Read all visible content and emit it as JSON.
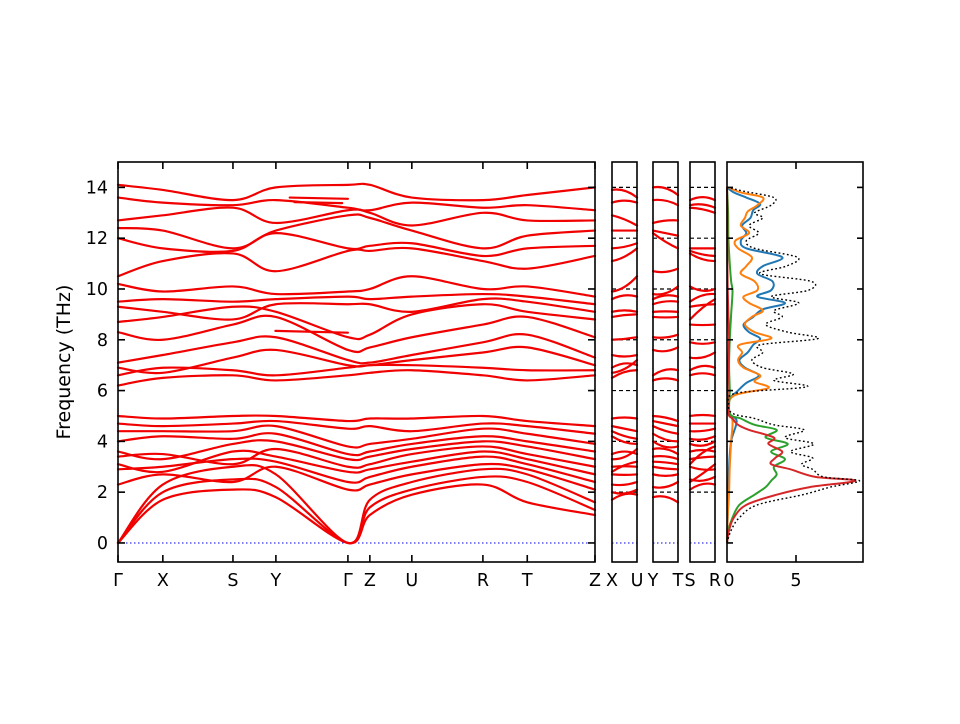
{
  "chart_data": {
    "type": "line",
    "title": "",
    "description": "Phonon band structure along orthorhombic high-symmetry path with three extra k-path segment panels and projected density of states panel",
    "ylabel": "Frequency (THz)",
    "yticks": [
      0,
      2,
      4,
      6,
      8,
      10,
      12,
      14
    ],
    "ylim": [
      -0.75,
      15.0
    ],
    "grid": "dashed horizontal lines in small segment panels only",
    "band_color": "#f10000",
    "zero_line_color": "#0000ff",
    "axis_color": "#000000",
    "main_panel": {
      "kpoint_labels": [
        "Γ",
        "X",
        "S",
        "Y",
        "Γ",
        "Z",
        "U",
        "R",
        "T",
        "Z"
      ],
      "kpoint_fractions": [
        0,
        0.094,
        0.241,
        0.331,
        0.482,
        0.528,
        0.616,
        0.765,
        0.858,
        1.0
      ],
      "bands": [
        [
          0.0,
          1.7,
          2.1,
          1.8,
          0.0,
          1.1,
          1.9,
          2.3,
          1.6,
          1.1
        ],
        [
          0.0,
          2.0,
          2.5,
          2.2,
          0.0,
          1.4,
          2.1,
          2.6,
          2.4,
          1.3
        ],
        [
          0.0,
          2.3,
          3.0,
          2.7,
          0.0,
          1.7,
          2.4,
          2.9,
          2.7,
          1.6
        ],
        [
          2.3,
          2.7,
          2.4,
          3.0,
          2.1,
          2.3,
          2.7,
          3.1,
          2.9,
          2.1
        ],
        [
          2.9,
          3.0,
          3.3,
          3.2,
          2.4,
          2.6,
          3.0,
          3.4,
          3.1,
          2.4
        ],
        [
          3.1,
          2.8,
          3.6,
          3.4,
          2.8,
          2.9,
          3.2,
          3.6,
          3.3,
          2.7
        ],
        [
          3.4,
          3.5,
          3.1,
          3.7,
          3.0,
          3.1,
          3.5,
          3.8,
          3.5,
          3.0
        ],
        [
          3.6,
          3.3,
          3.9,
          4.0,
          3.3,
          3.4,
          3.7,
          4.0,
          3.8,
          3.3
        ],
        [
          4.0,
          4.2,
          4.1,
          4.3,
          3.5,
          3.6,
          3.9,
          4.2,
          4.0,
          3.6
        ],
        [
          4.4,
          4.4,
          4.4,
          4.6,
          3.8,
          3.9,
          4.1,
          4.5,
          4.3,
          3.9
        ],
        [
          4.7,
          4.6,
          4.7,
          4.8,
          4.5,
          4.6,
          4.4,
          4.7,
          4.6,
          4.3
        ],
        [
          5.0,
          4.9,
          5.0,
          5.0,
          4.8,
          4.9,
          4.9,
          5.0,
          4.8,
          4.6
        ],
        [
          6.2,
          6.5,
          6.6,
          6.4,
          6.6,
          6.7,
          6.8,
          6.6,
          6.4,
          6.6
        ],
        [
          6.6,
          6.9,
          6.8,
          6.6,
          6.9,
          7.0,
          7.0,
          6.9,
          6.8,
          6.8
        ],
        [
          6.9,
          6.7,
          7.3,
          7.6,
          7.0,
          7.0,
          7.2,
          7.5,
          7.7,
          7.0
        ],
        [
          7.1,
          7.4,
          7.9,
          8.1,
          7.2,
          7.1,
          7.4,
          7.9,
          8.2,
          7.3
        ],
        [
          8.3,
          8.0,
          8.6,
          8.9,
          7.6,
          7.7,
          8.1,
          8.6,
          8.9,
          8.1
        ],
        [
          8.7,
          8.9,
          9.3,
          9.1,
          8.1,
          8.2,
          9.0,
          9.4,
          9.1,
          8.8
        ],
        [
          9.3,
          9.1,
          8.8,
          9.4,
          9.4,
          9.4,
          9.1,
          9.6,
          9.5,
          9.1
        ],
        [
          9.5,
          9.6,
          9.5,
          9.6,
          9.7,
          9.6,
          9.7,
          9.8,
          9.7,
          9.4
        ],
        [
          10.2,
          9.9,
          10.1,
          9.8,
          9.9,
          10.0,
          10.5,
          10.0,
          10.1,
          9.7
        ],
        [
          10.5,
          11.1,
          11.4,
          10.7,
          11.5,
          11.5,
          11.6,
          11.1,
          10.8,
          11.3
        ],
        [
          12.0,
          11.6,
          11.5,
          12.2,
          11.6,
          11.7,
          11.8,
          11.3,
          11.6,
          11.7
        ],
        [
          12.4,
          12.3,
          11.6,
          12.3,
          12.9,
          12.8,
          12.3,
          11.6,
          12.1,
          12.3
        ],
        [
          12.7,
          12.9,
          13.2,
          12.6,
          13.1,
          13.0,
          12.5,
          13.0,
          12.7,
          12.7
        ],
        [
          13.6,
          13.4,
          13.3,
          13.5,
          13.2,
          13.1,
          13.4,
          13.2,
          13.3,
          13.1
        ],
        [
          14.1,
          13.9,
          13.5,
          14.0,
          14.1,
          14.1,
          13.6,
          13.5,
          13.7,
          14.0
        ]
      ],
      "extra_segments": [
        [
          [
            0.36,
            13.6
          ],
          [
            0.482,
            13.55
          ]
        ],
        [
          [
            0.37,
            13.42
          ],
          [
            0.47,
            13.38
          ]
        ],
        [
          [
            0.33,
            8.35
          ],
          [
            0.482,
            8.28
          ]
        ]
      ]
    },
    "small_panels": [
      {
        "left_label": "X",
        "right_label": "U",
        "endpoint_indices": [
          1,
          6
        ]
      },
      {
        "left_label": "Y",
        "right_label": "T",
        "endpoint_indices": [
          3,
          8
        ]
      },
      {
        "left_label": "S",
        "right_label": "R",
        "endpoint_indices": [
          2,
          7
        ]
      }
    ],
    "dos_panel": {
      "xticks": [
        "0",
        "5"
      ],
      "xtick_values": [
        0,
        5
      ],
      "xlim": [
        0,
        9.85
      ],
      "series": [
        {
          "name": "dos-partial-blue",
          "color": "#1f77b4",
          "style": "solid",
          "points": [
            [
              0,
              0
            ],
            [
              1,
              0.05
            ],
            [
              2,
              0.1
            ],
            [
              3,
              0.15
            ],
            [
              4,
              0.3
            ],
            [
              4.8,
              0.7
            ],
            [
              5.1,
              0.15
            ],
            [
              5.6,
              0.1
            ],
            [
              6.0,
              0.8
            ],
            [
              6.3,
              1.4
            ],
            [
              6.6,
              2.3
            ],
            [
              6.9,
              1.3
            ],
            [
              7.2,
              0.9
            ],
            [
              7.5,
              1.5
            ],
            [
              7.8,
              1.9
            ],
            [
              8.05,
              2.4
            ],
            [
              8.3,
              1.6
            ],
            [
              8.6,
              1.2
            ],
            [
              8.9,
              1.9
            ],
            [
              9.2,
              2.6
            ],
            [
              9.45,
              4.2
            ],
            [
              9.7,
              2.2
            ],
            [
              9.95,
              3.2
            ],
            [
              10.3,
              3.3
            ],
            [
              10.6,
              2.2
            ],
            [
              10.9,
              2.6
            ],
            [
              11.25,
              4.0
            ],
            [
              11.6,
              1.4
            ],
            [
              11.9,
              1.0
            ],
            [
              12.2,
              1.4
            ],
            [
              12.5,
              1.1
            ],
            [
              12.8,
              1.7
            ],
            [
              13.1,
              1.9
            ],
            [
              13.35,
              2.4
            ],
            [
              13.6,
              1.4
            ],
            [
              13.8,
              0.5
            ],
            [
              14.0,
              0
            ]
          ]
        },
        {
          "name": "dos-partial-orange",
          "color": "#ff7f0e",
          "style": "solid",
          "points": [
            [
              0,
              0
            ],
            [
              1,
              0.05
            ],
            [
              2,
              0.15
            ],
            [
              3,
              0.2
            ],
            [
              4,
              0.3
            ],
            [
              4.8,
              0.4
            ],
            [
              5.2,
              0.1
            ],
            [
              5.8,
              0.5
            ],
            [
              6.1,
              3.0
            ],
            [
              6.35,
              2.0
            ],
            [
              6.6,
              2.4
            ],
            [
              6.9,
              1.2
            ],
            [
              7.2,
              0.8
            ],
            [
              7.5,
              1.1
            ],
            [
              7.8,
              0.9
            ],
            [
              8.05,
              3.2
            ],
            [
              8.3,
              2.0
            ],
            [
              8.6,
              1.3
            ],
            [
              8.9,
              1.8
            ],
            [
              9.15,
              2.6
            ],
            [
              9.45,
              1.6
            ],
            [
              9.7,
              1.2
            ],
            [
              9.95,
              2.2
            ],
            [
              10.3,
              2.0
            ],
            [
              10.6,
              1.0
            ],
            [
              10.9,
              1.4
            ],
            [
              11.25,
              1.8
            ],
            [
              11.6,
              0.8
            ],
            [
              11.9,
              0.6
            ],
            [
              12.2,
              1.6
            ],
            [
              12.5,
              1.0
            ],
            [
              12.8,
              1.3
            ],
            [
              13.05,
              1.5
            ],
            [
              13.3,
              2.2
            ],
            [
              13.6,
              2.6
            ],
            [
              13.8,
              1.0
            ],
            [
              14.0,
              0.1
            ]
          ]
        },
        {
          "name": "dos-partial-green",
          "color": "#2ca02c",
          "style": "solid",
          "points": [
            [
              0,
              0
            ],
            [
              0.5,
              0.1
            ],
            [
              1,
              0.4
            ],
            [
              1.5,
              0.9
            ],
            [
              1.9,
              2.0
            ],
            [
              2.2,
              2.8
            ],
            [
              2.45,
              3.2
            ],
            [
              2.7,
              3.6
            ],
            [
              3.0,
              3.4
            ],
            [
              3.3,
              4.2
            ],
            [
              3.6,
              3.2
            ],
            [
              3.9,
              4.4
            ],
            [
              4.15,
              2.8
            ],
            [
              4.45,
              3.6
            ],
            [
              4.65,
              2.0
            ],
            [
              4.9,
              1.0
            ],
            [
              5.1,
              0.2
            ],
            [
              6,
              0.2
            ],
            [
              7,
              0.15
            ],
            [
              8,
              0.2
            ],
            [
              9,
              0.3
            ],
            [
              9.9,
              0.4
            ],
            [
              10.3,
              0.3
            ],
            [
              11,
              0.2
            ],
            [
              12,
              0.1
            ],
            [
              13,
              0.08
            ],
            [
              14,
              0
            ]
          ]
        },
        {
          "name": "dos-partial-red",
          "color": "#d62728",
          "style": "solid",
          "points": [
            [
              0,
              0
            ],
            [
              0.5,
              0.15
            ],
            [
              1,
              0.5
            ],
            [
              1.5,
              1.4
            ],
            [
              1.9,
              3.6
            ],
            [
              2.2,
              6.0
            ],
            [
              2.45,
              9.3
            ],
            [
              2.6,
              6.4
            ],
            [
              2.9,
              4.6
            ],
            [
              3.1,
              3.2
            ],
            [
              3.35,
              3.5
            ],
            [
              3.6,
              4.0
            ],
            [
              3.9,
              3.0
            ],
            [
              4.15,
              3.4
            ],
            [
              4.45,
              1.6
            ],
            [
              4.65,
              0.8
            ],
            [
              4.9,
              0.4
            ],
            [
              5.1,
              0.1
            ],
            [
              6,
              0.05
            ],
            [
              7,
              0.1
            ],
            [
              8,
              0.15
            ],
            [
              9,
              0.1
            ],
            [
              10,
              0.05
            ],
            [
              11,
              0.03
            ],
            [
              12,
              0.02
            ],
            [
              13,
              0.02
            ],
            [
              14,
              0
            ]
          ]
        },
        {
          "name": "dos-total",
          "color": "#000000",
          "style": "dotted",
          "points": [
            [
              0,
              0
            ],
            [
              0.5,
              0.3
            ],
            [
              1.0,
              0.9
            ],
            [
              1.5,
              2.2
            ],
            [
              1.9,
              5.5
            ],
            [
              2.2,
              7.5
            ],
            [
              2.45,
              9.6
            ],
            [
              2.6,
              7.0
            ],
            [
              2.9,
              6.2
            ],
            [
              3.1,
              5.4
            ],
            [
              3.35,
              6.2
            ],
            [
              3.6,
              4.6
            ],
            [
              3.9,
              6.3
            ],
            [
              4.15,
              4.2
            ],
            [
              4.45,
              5.6
            ],
            [
              4.65,
              3.4
            ],
            [
              4.9,
              2.0
            ],
            [
              5.1,
              0.4
            ],
            [
              5.5,
              0.12
            ],
            [
              5.9,
              0.7
            ],
            [
              6.15,
              5.8
            ],
            [
              6.4,
              3.4
            ],
            [
              6.65,
              4.8
            ],
            [
              6.9,
              2.6
            ],
            [
              7.2,
              1.8
            ],
            [
              7.5,
              2.6
            ],
            [
              7.8,
              2.4
            ],
            [
              8.05,
              6.6
            ],
            [
              8.3,
              4.4
            ],
            [
              8.6,
              2.8
            ],
            [
              8.9,
              4.0
            ],
            [
              9.15,
              3.4
            ],
            [
              9.45,
              5.2
            ],
            [
              9.7,
              3.2
            ],
            [
              9.95,
              5.9
            ],
            [
              10.3,
              6.1
            ],
            [
              10.6,
              2.4
            ],
            [
              10.9,
              4.3
            ],
            [
              11.25,
              5.1
            ],
            [
              11.6,
              2.0
            ],
            [
              11.9,
              1.4
            ],
            [
              12.2,
              2.3
            ],
            [
              12.5,
              1.6
            ],
            [
              12.8,
              2.6
            ],
            [
              13.0,
              2.0
            ],
            [
              13.3,
              3.2
            ],
            [
              13.6,
              3.4
            ],
            [
              13.85,
              1.2
            ],
            [
              14.0,
              0.1
            ]
          ]
        }
      ]
    }
  }
}
